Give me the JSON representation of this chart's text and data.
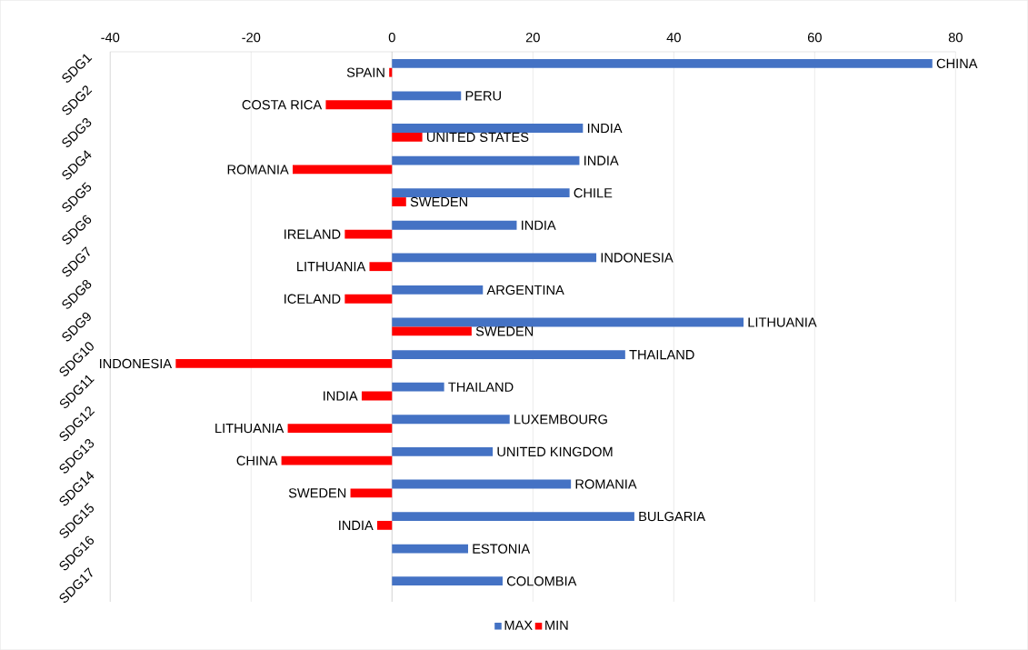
{
  "chart_data": {
    "type": "bar",
    "orientation": "horizontal",
    "categories": [
      "SDG1",
      "SDG2",
      "SDG3",
      "SDG4",
      "SDG5",
      "SDG6",
      "SDG7",
      "SDG8",
      "SDG9",
      "SDG10",
      "SDG11",
      "SDG12",
      "SDG13",
      "SDG14",
      "SDG15",
      "SDG16",
      "SDG17"
    ],
    "series": [
      {
        "name": "MAX",
        "color": "#4472c4",
        "values": [
          76.7,
          9.8,
          27.1,
          26.6,
          25.2,
          17.7,
          29.0,
          12.9,
          49.9,
          33.1,
          7.4,
          16.7,
          14.3,
          25.4,
          34.4,
          10.8,
          15.7
        ],
        "value_labels": [
          "CHINA",
          "PERU",
          "INDIA",
          "INDIA",
          "CHILE",
          "INDIA",
          "INDONESIA",
          "ARGENTINA",
          "LITHUANIA",
          "THAILAND",
          "THAILAND",
          "LUXEMBOURG",
          "UNITED KINGDOM",
          "ROMANIA",
          "BULGARIA",
          "ESTONIA",
          "COLOMBIA"
        ]
      },
      {
        "name": "MIN",
        "color": "#ff0000",
        "values": [
          -0.4,
          -9.4,
          4.3,
          -14.1,
          2.0,
          -6.7,
          -3.2,
          -6.7,
          11.3,
          -30.7,
          -4.3,
          -14.8,
          -15.7,
          -5.9,
          -2.1,
          null,
          null
        ],
        "value_labels": [
          "SPAIN",
          "COSTA RICA",
          "UNITED STATES",
          "ROMANIA",
          "SWEDEN",
          "IRELAND",
          "LITHUANIA",
          "ICELAND",
          "SWEDEN",
          "INDONESIA",
          "INDIA",
          "LITHUANIA",
          "CHINA",
          "SWEDEN",
          "INDIA",
          null,
          null
        ]
      }
    ],
    "xlim": [
      -40,
      80
    ],
    "xticks": [
      -40,
      -20,
      0,
      20,
      40,
      60,
      80
    ],
    "grid": "x",
    "legend": "bottom"
  }
}
